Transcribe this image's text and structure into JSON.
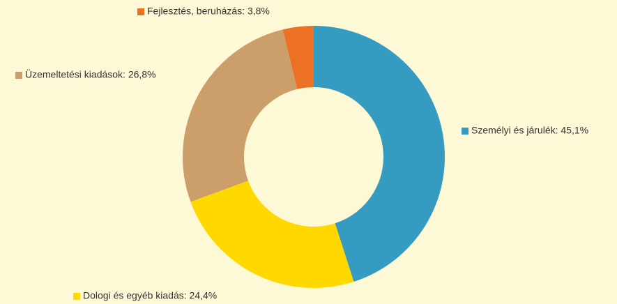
{
  "chart_data": {
    "type": "donut",
    "categories": [
      "Személyi és járulék: 45,1%",
      "Dologi és egyéb kiadás: 24,4%",
      "Üzemeltetési kiadások: 26,8%",
      "Fejlesztés, beruházás: 3,8%"
    ],
    "values": [
      45.1,
      24.4,
      26.8,
      3.8
    ],
    "colors": [
      "#359bc1",
      "#ffd800",
      "#cc9e6a",
      "#ec7125"
    ]
  }
}
